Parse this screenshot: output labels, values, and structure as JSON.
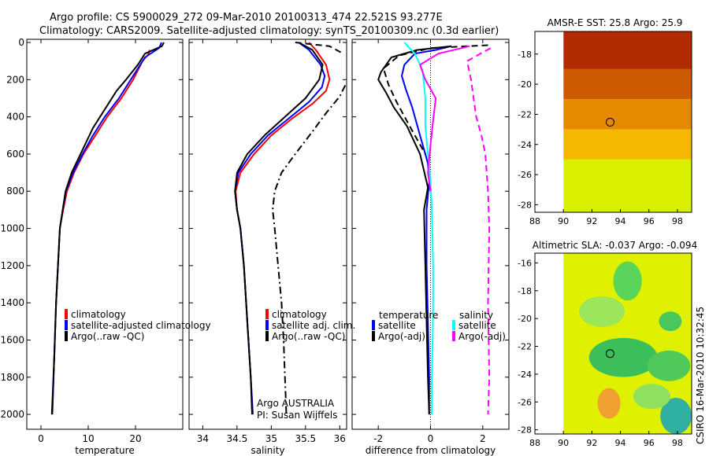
{
  "header": {
    "title_line1": "Argo profile: CS 5900029_272 09-Mar-2010 20100313_474 22.521S 93.277E",
    "title_line2": "Climatology: CARS2009. Satellite-adjusted climatology: synTS_20100309.nc (0.3d earlier)"
  },
  "side_label": "CSIRO 16-Mar-2010 10:32:45",
  "colors": {
    "red": "#ff0000",
    "blue": "#0000ff",
    "black": "#000000",
    "cyan": "#00ffff",
    "magenta": "#ff00ff"
  },
  "chart_data": [
    {
      "id": "temperature",
      "type": "line",
      "xlabel": "temperature",
      "xlim": [
        -3,
        30
      ],
      "ylim": [
        0,
        2080
      ],
      "y_reversed": true,
      "xticks": [
        0,
        10,
        20
      ],
      "yticks": [
        0,
        200,
        400,
        600,
        800,
        1000,
        1200,
        1400,
        1600,
        1800,
        2000
      ],
      "legend": [
        "climatology",
        "satellite-adjusted climatology",
        "Argo(..raw -QC)"
      ],
      "series": [
        {
          "name": "climatology",
          "color": "red",
          "style": "solid",
          "x": [
            23,
            22.8,
            21.5,
            19.5,
            17,
            14,
            11.5,
            9,
            7,
            5.5,
            4.7,
            4,
            3.6,
            3.2,
            2.8,
            2.4
          ],
          "y": [
            40,
            60,
            100,
            200,
            300,
            400,
            500,
            600,
            700,
            800,
            900,
            1000,
            1200,
            1400,
            1700,
            2000
          ]
        },
        {
          "name": "satellite-adjusted climatology",
          "color": "blue",
          "style": "solid",
          "x": [
            25.5,
            25,
            22,
            19,
            16.5,
            13.5,
            11,
            8.8,
            6.8,
            5.3,
            4.6,
            4,
            3.6,
            3.2,
            2.8,
            2.4
          ],
          "y": [
            0,
            30,
            80,
            200,
            300,
            400,
            500,
            600,
            700,
            800,
            900,
            1000,
            1200,
            1400,
            1700,
            2000
          ]
        },
        {
          "name": "Argo(..raw -QC)",
          "color": "black",
          "style": "solid",
          "x": [
            26,
            25.6,
            22,
            20.5,
            18,
            16,
            14.5,
            13,
            11,
            9.5,
            8,
            6.5,
            5.2,
            4.6,
            4,
            3.6,
            3.2,
            2.8,
            2.3
          ],
          "y": [
            0,
            20,
            60,
            120,
            200,
            260,
            320,
            380,
            460,
            540,
            620,
            700,
            800,
            900,
            1000,
            1200,
            1400,
            1700,
            2000
          ]
        }
      ]
    },
    {
      "id": "salinity",
      "type": "line",
      "xlabel": "salinity",
      "xlim": [
        33.8,
        36.1
      ],
      "ylim": [
        0,
        2080
      ],
      "y_reversed": true,
      "xticks": [
        34,
        34.5,
        35,
        35.5,
        36
      ],
      "legend": [
        "climatology",
        "satellite adj. clim.",
        "Argo(..raw -QC)"
      ],
      "annotation": [
        "Argo AUSTRALIA",
        "PI: Susan Wijffels"
      ],
      "series": [
        {
          "name": "climatology",
          "color": "red",
          "style": "solid",
          "x": [
            35.55,
            35.65,
            35.8,
            35.85,
            35.8,
            35.6,
            35.3,
            35.0,
            34.75,
            34.55,
            34.48,
            34.5,
            34.55,
            34.6,
            34.65,
            34.7,
            34.73
          ],
          "y": [
            0,
            40,
            120,
            200,
            260,
            330,
            410,
            500,
            600,
            700,
            800,
            900,
            1000,
            1200,
            1500,
            1800,
            2000
          ]
        },
        {
          "name": "satellite adj. clim.",
          "color": "blue",
          "style": "solid",
          "x": [
            35.4,
            35.55,
            35.72,
            35.78,
            35.74,
            35.55,
            35.25,
            34.95,
            34.7,
            34.52,
            34.47,
            34.5,
            34.55,
            34.6,
            34.65,
            34.7,
            34.73
          ],
          "y": [
            0,
            40,
            120,
            180,
            240,
            320,
            410,
            500,
            600,
            700,
            800,
            900,
            1000,
            1200,
            1500,
            1800,
            2000
          ]
        },
        {
          "name": "Argo(..raw -QC)",
          "color": "black",
          "style": "solid",
          "x": [
            35.4,
            35.6,
            35.75,
            35.7,
            35.5,
            35.2,
            34.9,
            34.65,
            34.5,
            34.47,
            34.5,
            34.55,
            34.6,
            34.65,
            34.7,
            34.72
          ],
          "y": [
            0,
            40,
            120,
            200,
            300,
            400,
            500,
            600,
            700,
            800,
            900,
            1000,
            1200,
            1500,
            1800,
            2000
          ]
        },
        {
          "name": "",
          "color": "black",
          "style": "dashed",
          "x": [
            35.35,
            35.6,
            35.85,
            35.95,
            36.05
          ],
          "y": [
            0,
            10,
            20,
            40,
            60
          ]
        },
        {
          "name": "",
          "color": "black",
          "style": "dashdot",
          "x": [
            36.08,
            36.0,
            35.8,
            35.6,
            35.35,
            35.15,
            35.05,
            35.02,
            35.05,
            35.1,
            35.15,
            35.18,
            35.2,
            35.22
          ],
          "y": [
            230,
            290,
            380,
            480,
            600,
            700,
            800,
            900,
            1000,
            1200,
            1400,
            1600,
            1800,
            2000
          ]
        }
      ]
    },
    {
      "id": "difference",
      "type": "line",
      "xlabel": "difference from climatology",
      "xlim": [
        -3,
        3
      ],
      "ylim": [
        0,
        2080
      ],
      "y_reversed": true,
      "xticks": [
        -2,
        0,
        2
      ],
      "legend_headers": [
        "temperature",
        "salinity"
      ],
      "legend": [
        "satellite",
        "Argo(-adj)",
        "satellite",
        "Argo(-adj)"
      ],
      "series": [
        {
          "name": "satellite",
          "group": "temperature",
          "color": "blue",
          "style": "solid",
          "x": [
            0.8,
            0.2,
            -0.6,
            -1.0,
            -1.1,
            -0.95,
            -0.7,
            -0.4,
            -0.1,
            -0.05,
            -0.15,
            -0.15,
            -0.1,
            -0.05,
            -0.05
          ],
          "y": [
            20,
            40,
            60,
            120,
            180,
            250,
            350,
            500,
            650,
            750,
            900,
            1200,
            1500,
            1800,
            2000
          ]
        },
        {
          "name": "Argo(-adj)",
          "group": "temperature",
          "color": "black",
          "style": "solid",
          "x": [
            0.8,
            -0.5,
            -1.5,
            -1.9,
            -2.0,
            -1.7,
            -1.4,
            -0.9,
            -0.4,
            -0.1,
            -0.25,
            -0.2,
            -0.15,
            -0.1,
            -0.05
          ],
          "y": [
            20,
            40,
            80,
            160,
            200,
            270,
            350,
            450,
            600,
            780,
            900,
            1200,
            1500,
            1800,
            2000
          ]
        },
        {
          "name": "",
          "group": "temperature",
          "color": "black",
          "style": "dashed",
          "x": [
            2.2,
            0.0,
            -1.2,
            -1.8,
            -1.6,
            -1.3,
            -0.8,
            -0.2
          ],
          "y": [
            15,
            30,
            70,
            140,
            230,
            320,
            450,
            600
          ]
        },
        {
          "name": "satellite",
          "group": "salinity",
          "color": "cyan",
          "style": "solid",
          "x": [
            -1.0,
            -0.6,
            -0.3,
            -0.2,
            -0.2,
            -0.1,
            0.0,
            0.05,
            0.1,
            0.1,
            0.08,
            0.05,
            0.05
          ],
          "y": [
            0,
            60,
            150,
            300,
            450,
            600,
            750,
            900,
            1200,
            1400,
            1600,
            1800,
            2000
          ]
        },
        {
          "name": "Argo(-adj)",
          "group": "salinity",
          "color": "magenta",
          "style": "solid",
          "x": [
            1.5,
            0.3,
            -0.4,
            -0.2,
            0.2,
            0.1,
            0.0,
            -0.1,
            0.0
          ],
          "y": [
            20,
            60,
            120,
            200,
            300,
            420,
            550,
            700,
            800
          ]
        },
        {
          "name": "",
          "group": "salinity",
          "color": "magenta",
          "style": "dashed",
          "x": [
            2.3,
            1.4,
            1.55,
            1.65,
            1.75,
            1.95,
            2.1,
            2.15,
            2.2,
            2.25,
            2.2,
            2.25,
            2.2
          ],
          "y": [
            30,
            100,
            200,
            300,
            400,
            500,
            600,
            700,
            800,
            1000,
            1400,
            1800,
            2000
          ]
        }
      ]
    },
    {
      "id": "sst_map",
      "type": "heatmap",
      "title": "AMSR-E SST: 25.8 Argo: 25.9",
      "xlim": [
        88,
        99
      ],
      "ylim": [
        -28.5,
        -16.5
      ],
      "xticks": [
        88,
        90,
        92,
        94,
        96,
        98
      ],
      "yticks": [
        -18,
        -20,
        -22,
        -24,
        -26,
        -28
      ],
      "data_lon_range": [
        90,
        99
      ],
      "marker": {
        "lon": 93.277,
        "lat": -22.521
      },
      "bands": [
        {
          "lat_from": -16.5,
          "lat_to": -19,
          "color": "#b22a00"
        },
        {
          "lat_from": -19,
          "lat_to": -21,
          "color": "#cc5a00"
        },
        {
          "lat_from": -21,
          "lat_to": -23,
          "color": "#e58a00"
        },
        {
          "lat_from": -23,
          "lat_to": -25,
          "color": "#f5b800"
        },
        {
          "lat_from": -25,
          "lat_to": -28.5,
          "color": "#d8f000"
        }
      ]
    },
    {
      "id": "sla_map",
      "type": "heatmap",
      "title": "Altimetric SLA: -0.037 Argo: -0.094",
      "xlim": [
        88,
        99
      ],
      "ylim": [
        -28.3,
        -15.3
      ],
      "xticks": [
        88,
        90,
        92,
        94,
        96,
        98
      ],
      "yticks": [
        -16,
        -18,
        -20,
        -22,
        -24,
        -26,
        -28
      ],
      "data_lon_range": [
        90,
        99
      ],
      "marker": {
        "lon": 93.277,
        "lat": -22.521
      },
      "background": "#dff000",
      "blobs": [
        {
          "lon": 94.5,
          "lat": -17.3,
          "rx": 1.0,
          "ry": 1.4,
          "color": "#5ad45a"
        },
        {
          "lon": 92.7,
          "lat": -19.5,
          "rx": 1.6,
          "ry": 1.1,
          "color": "#9be65a"
        },
        {
          "lon": 97.5,
          "lat": -20.2,
          "rx": 0.8,
          "ry": 0.7,
          "color": "#48c85a"
        },
        {
          "lon": 94.2,
          "lat": -22.8,
          "rx": 2.4,
          "ry": 1.4,
          "color": "#3cbf5a"
        },
        {
          "lon": 97.4,
          "lat": -23.4,
          "rx": 1.5,
          "ry": 1.1,
          "color": "#50c85a"
        },
        {
          "lon": 93.2,
          "lat": -26.1,
          "rx": 0.8,
          "ry": 1.1,
          "color": "#f0a030"
        },
        {
          "lon": 97.9,
          "lat": -27.0,
          "rx": 1.1,
          "ry": 1.3,
          "color": "#2fb0a0"
        },
        {
          "lon": 96.2,
          "lat": -25.6,
          "rx": 1.3,
          "ry": 0.9,
          "color": "#8fe060"
        }
      ]
    }
  ]
}
